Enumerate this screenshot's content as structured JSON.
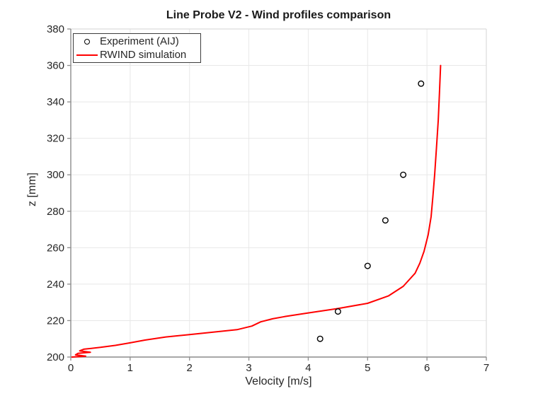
{
  "figure": {
    "background": "#ffffff"
  },
  "chart_data": {
    "type": "line",
    "title": "Line Probe V2 - Wind profiles comparison",
    "xlabel": "Velocity [m/s]",
    "ylabel": "z [mm]",
    "xlim": [
      0,
      7
    ],
    "ylim": [
      200,
      380
    ],
    "xticks": [
      0,
      1,
      2,
      3,
      4,
      5,
      6,
      7
    ],
    "yticks": [
      200,
      220,
      240,
      260,
      280,
      300,
      320,
      340,
      360,
      380
    ],
    "grid": true,
    "legend": {
      "position": "top-left",
      "border": true
    },
    "colors": {
      "grid": "#e8e8e8",
      "box": "#dcdcdc",
      "axis": "#8c8c8c",
      "tick": "#8c8c8c",
      "tick_label": "#262626",
      "background": "#ffffff"
    },
    "series": [
      {
        "name": "Experiment (AIJ)",
        "type": "scatter",
        "marker": "open-circle",
        "color": "#000000",
        "points": [
          [
            4.2,
            210
          ],
          [
            4.5,
            225
          ],
          [
            5.0,
            250
          ],
          [
            5.3,
            275
          ],
          [
            5.6,
            300
          ],
          [
            5.9,
            350
          ]
        ]
      },
      {
        "name": "RWIND simulation",
        "type": "line",
        "color": "#ff0000",
        "line_width": 2,
        "points": [
          [
            0.02,
            200
          ],
          [
            0.25,
            200.5
          ],
          [
            0.08,
            201.2
          ],
          [
            0.12,
            202.0
          ],
          [
            0.33,
            202.6
          ],
          [
            0.15,
            203.4
          ],
          [
            0.22,
            204.3
          ],
          [
            0.5,
            205.3
          ],
          [
            0.75,
            206.4
          ],
          [
            1.0,
            207.8
          ],
          [
            1.25,
            209.3
          ],
          [
            1.6,
            211.0
          ],
          [
            2.0,
            212.3
          ],
          [
            2.4,
            213.7
          ],
          [
            2.8,
            215.0
          ],
          [
            3.05,
            217.0
          ],
          [
            3.2,
            219.3
          ],
          [
            3.4,
            221.0
          ],
          [
            3.6,
            222.2
          ],
          [
            4.0,
            224.2
          ],
          [
            4.5,
            226.6
          ],
          [
            5.0,
            229.5
          ],
          [
            5.35,
            233.5
          ],
          [
            5.6,
            238.8
          ],
          [
            5.8,
            246.0
          ],
          [
            5.88,
            251.5
          ],
          [
            5.95,
            258.0
          ],
          [
            6.02,
            267.0
          ],
          [
            6.07,
            277.0
          ],
          [
            6.1,
            288.0
          ],
          [
            6.13,
            300.0
          ],
          [
            6.16,
            315.0
          ],
          [
            6.19,
            330.0
          ],
          [
            6.21,
            345.0
          ],
          [
            6.23,
            360.0
          ]
        ]
      }
    ]
  }
}
